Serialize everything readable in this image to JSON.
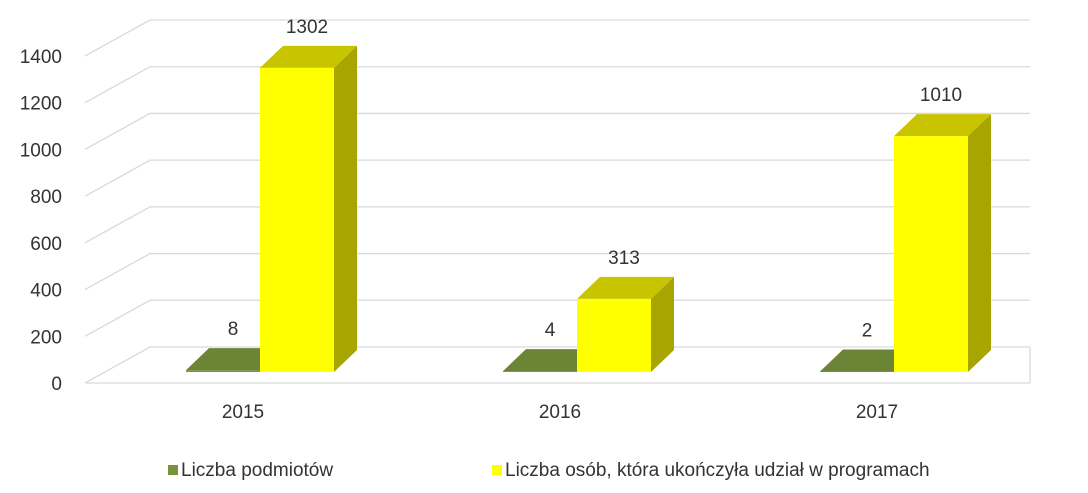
{
  "chart_data": {
    "type": "bar3d",
    "categories": [
      "2015",
      "2016",
      "2017"
    ],
    "series": [
      {
        "name": "Liczba podmiotów",
        "color": "#77933c",
        "values": [
          8,
          4,
          2
        ]
      },
      {
        "name": "Liczba osób, która ukończyła udział w programach",
        "color": "#ffff00",
        "values": [
          1302,
          313,
          1010
        ]
      }
    ],
    "ylim": [
      0,
      1400
    ],
    "yticks": [
      0,
      200,
      400,
      600,
      800,
      1000,
      1200,
      1400
    ],
    "grid": true,
    "legend": "bottom"
  }
}
